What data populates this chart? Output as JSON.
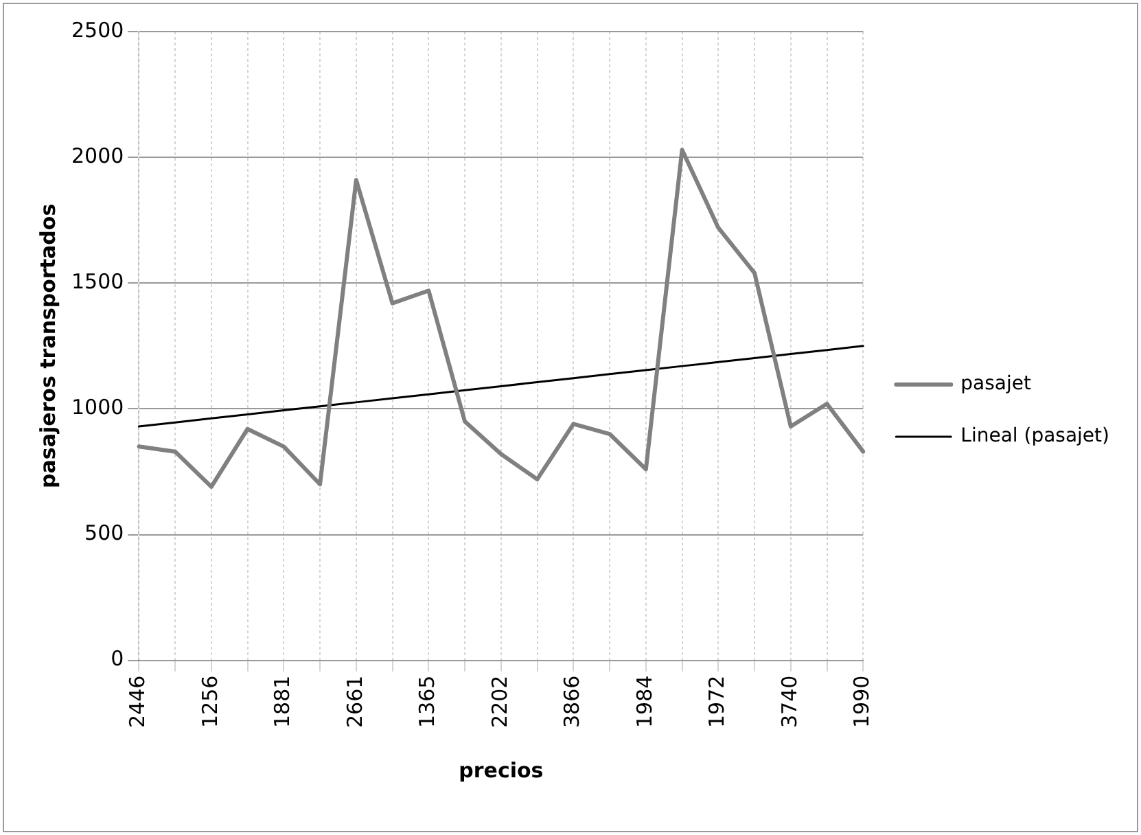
{
  "chart_data": {
    "type": "line",
    "xlabel": "precios",
    "ylabel": "pasajeros transportados",
    "categories": [
      "2446",
      null,
      "1256",
      null,
      "1881",
      null,
      "2661",
      null,
      "1365",
      null,
      "2202",
      null,
      "3866",
      null,
      "1984",
      null,
      "1972",
      null,
      "3740",
      null,
      "1990"
    ],
    "series": [
      {
        "name": "pasajet",
        "color": "#808080",
        "values": [
          850,
          830,
          690,
          920,
          850,
          700,
          1910,
          1420,
          1470,
          950,
          820,
          720,
          940,
          900,
          760,
          2030,
          1720,
          1540,
          930,
          1020,
          830
        ]
      },
      {
        "name": "Lineal (pasajet)",
        "color": "#000000",
        "values": [
          930,
          946,
          962,
          978,
          994,
          1010,
          1026,
          1042,
          1058,
          1074,
          1090,
          1106,
          1122,
          1138,
          1154,
          1170,
          1186,
          1202,
          1218,
          1234,
          1250
        ]
      }
    ],
    "ylim": [
      0,
      2500
    ],
    "yticks": [
      0,
      500,
      1000,
      1500,
      2000,
      2500
    ],
    "grid": true,
    "legend": "right",
    "marker": "none",
    "line_style": "solid"
  }
}
